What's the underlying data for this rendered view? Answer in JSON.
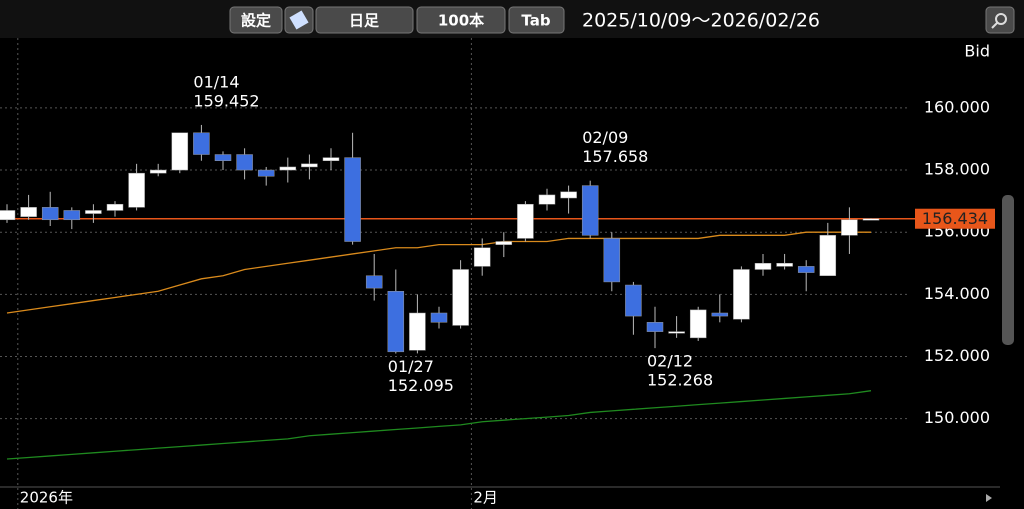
{
  "toolbar": {
    "settings": "設定",
    "period": "日足",
    "count": "100本",
    "tab": "Tab",
    "range": "2025/10/09～2026/02/26"
  },
  "chart_data": {
    "type": "candlestick",
    "y_axis_label": "Bid",
    "categories": [
      null,
      "2026年",
      null,
      null,
      null,
      null,
      null,
      null,
      null,
      null,
      null,
      null,
      null,
      null,
      null,
      null,
      null,
      null,
      null,
      null,
      null,
      null,
      "2月",
      null,
      null,
      null,
      null,
      null,
      null,
      null,
      null,
      null,
      null,
      null,
      null,
      null,
      null,
      null,
      null,
      null,
      null
    ],
    "open": [
      156.4,
      156.5,
      156.8,
      156.7,
      156.6,
      156.7,
      156.8,
      157.9,
      158.0,
      159.2,
      158.5,
      158.5,
      158.0,
      158.0,
      158.1,
      158.3,
      158.4,
      154.6,
      154.1,
      152.2,
      153.4,
      153.0,
      154.9,
      155.6,
      155.8,
      156.9,
      157.1,
      157.5,
      155.8,
      154.3,
      153.1,
      152.75,
      152.6,
      153.4,
      153.2,
      154.8,
      154.9,
      154.9,
      154.6,
      155.9,
      156.43
    ],
    "high": [
      156.9,
      157.2,
      157.3,
      156.8,
      156.9,
      157.0,
      158.2,
      158.2,
      159.2,
      159.452,
      158.6,
      158.7,
      158.1,
      158.4,
      158.5,
      158.7,
      159.2,
      155.3,
      154.8,
      154.0,
      153.6,
      155.1,
      155.8,
      156.0,
      157.0,
      157.4,
      157.5,
      157.658,
      156.0,
      154.4,
      153.6,
      153.3,
      153.6,
      154.0,
      154.9,
      155.3,
      155.3,
      155.1,
      156.3,
      156.8,
      156.45
    ],
    "low": [
      156.3,
      156.4,
      156.2,
      156.1,
      156.3,
      156.5,
      156.7,
      157.8,
      157.9,
      158.3,
      158.0,
      157.7,
      157.5,
      157.6,
      157.7,
      158.0,
      155.6,
      153.8,
      152.095,
      152.1,
      152.9,
      152.9,
      154.6,
      155.2,
      155.7,
      156.7,
      156.6,
      155.8,
      154.1,
      152.7,
      152.268,
      152.6,
      152.5,
      153.1,
      153.1,
      154.6,
      154.8,
      154.1,
      154.6,
      155.3,
      156.43
    ],
    "close": [
      156.7,
      156.8,
      156.4,
      156.4,
      156.7,
      156.9,
      157.9,
      158.0,
      159.2,
      158.5,
      158.3,
      158.0,
      157.8,
      158.1,
      158.2,
      158.4,
      155.7,
      154.2,
      152.15,
      153.4,
      153.1,
      154.8,
      155.5,
      155.7,
      156.9,
      157.2,
      157.3,
      155.9,
      154.4,
      153.3,
      152.8,
      152.8,
      153.5,
      153.3,
      154.8,
      155.0,
      155.0,
      154.7,
      155.9,
      156.4,
      156.434
    ],
    "up_color": "#ffffff",
    "down_color": "#3d6fe0",
    "series": [
      {
        "color": "#d98a1c",
        "values": [
          153.4,
          153.5,
          153.6,
          153.7,
          153.8,
          153.9,
          154.0,
          154.1,
          154.3,
          154.5,
          154.6,
          154.8,
          154.9,
          155.0,
          155.1,
          155.2,
          155.3,
          155.4,
          155.5,
          155.5,
          155.6,
          155.6,
          155.6,
          155.7,
          155.7,
          155.7,
          155.8,
          155.8,
          155.8,
          155.8,
          155.8,
          155.8,
          155.8,
          155.9,
          155.9,
          155.9,
          155.9,
          156.0,
          156.0,
          156.0,
          156.0
        ]
      },
      {
        "color": "#1f8a1f",
        "values": [
          148.7,
          148.75,
          148.8,
          148.85,
          148.9,
          148.95,
          149.0,
          149.05,
          149.1,
          149.15,
          149.2,
          149.25,
          149.3,
          149.35,
          149.45,
          149.5,
          149.55,
          149.6,
          149.65,
          149.7,
          149.75,
          149.8,
          149.9,
          149.95,
          150.0,
          150.05,
          150.1,
          150.2,
          150.25,
          150.3,
          150.35,
          150.4,
          150.45,
          150.5,
          150.55,
          150.6,
          150.65,
          150.7,
          150.75,
          150.8,
          150.9
        ]
      }
    ],
    "annotations": [
      {
        "date": "01/14",
        "value": 159.452
      },
      {
        "date": "01/27",
        "value": 152.095
      },
      {
        "date": "02/09",
        "value": 157.658
      },
      {
        "date": "02/12",
        "value": 152.268
      }
    ],
    "current_price": 156.434,
    "current_color": "#e8561a",
    "ylim": [
      147.8,
      162.25
    ],
    "yticks": [
      {
        "value": 150,
        "label": "150.000"
      },
      {
        "value": 152,
        "label": "152.000"
      },
      {
        "value": 154,
        "label": "154.000"
      },
      {
        "value": 156,
        "label": "156.000"
      },
      {
        "value": 158,
        "label": "158.000"
      },
      {
        "value": 160,
        "label": "160.000"
      }
    ],
    "grid": true
  }
}
